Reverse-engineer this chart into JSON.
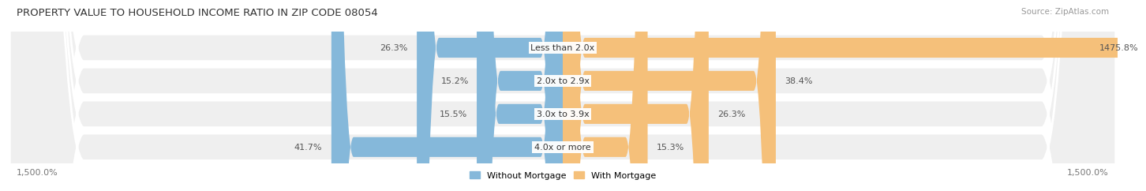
{
  "title": "PROPERTY VALUE TO HOUSEHOLD INCOME RATIO IN ZIP CODE 08054",
  "source": "Source: ZipAtlas.com",
  "categories": [
    "Less than 2.0x",
    "2.0x to 2.9x",
    "3.0x to 3.9x",
    "4.0x or more"
  ],
  "without_mortgage": [
    26.3,
    15.2,
    15.5,
    41.7
  ],
  "with_mortgage": [
    1475.8,
    38.4,
    26.3,
    15.3
  ],
  "without_mortgage_color": "#85b8da",
  "with_mortgage_color": "#f5c07a",
  "bar_bg_color": "#efefef",
  "bar_bg_border": "#e0e0e0",
  "title_fontsize": 9.5,
  "source_fontsize": 7.5,
  "label_fontsize": 8,
  "annot_fontsize": 8,
  "x_min": -1500,
  "x_max": 1500,
  "xlabel_left": "1,500.0%",
  "xlabel_right": "1,500.0%",
  "bg_color": "#ffffff"
}
